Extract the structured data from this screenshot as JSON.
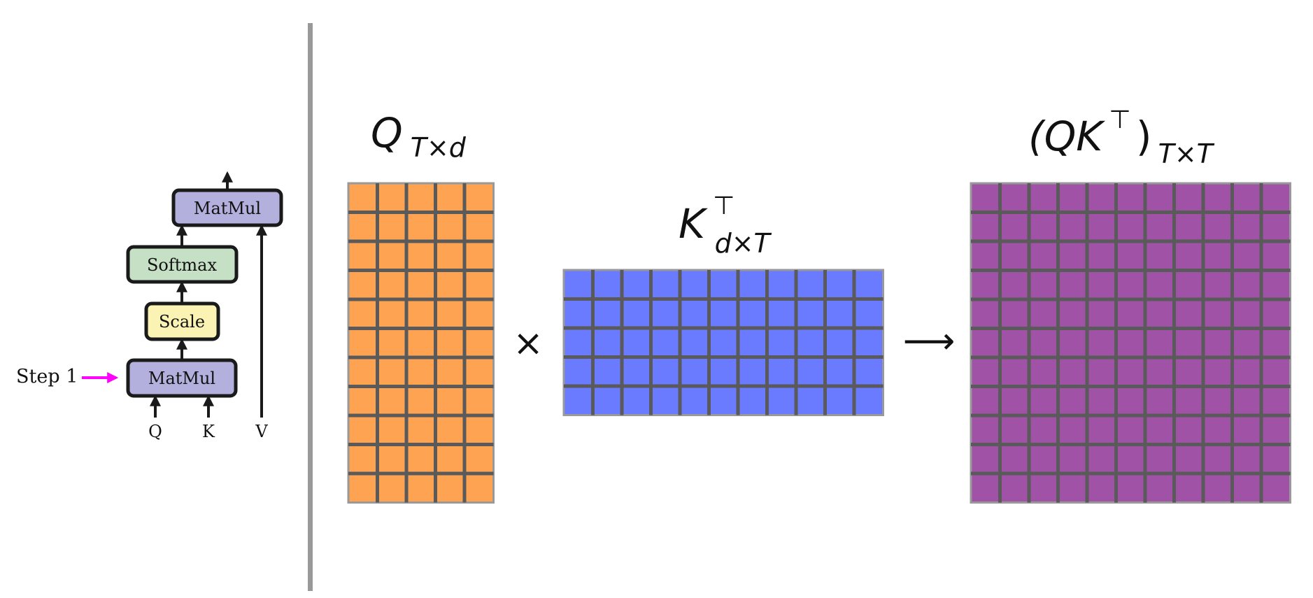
{
  "pipeline": {
    "blocks": {
      "matmul_top": "MatMul",
      "softmax": "Softmax",
      "scale": "Scale",
      "matmul_bottom": "MatMul"
    },
    "inputs": {
      "q": "Q",
      "k": "K",
      "v": "V"
    },
    "step_label": "Step 1",
    "colors": {
      "matmul": "#b3b0dd",
      "softmax": "#c6e0c6",
      "scale": "#fbf3b3",
      "step_arrow": "#ff00ff",
      "border": "#1a1a1a"
    }
  },
  "matrices": {
    "q": {
      "symbol": "Q",
      "subscript": "T×d",
      "rows": 11,
      "cols": 5,
      "color": "#fda352"
    },
    "k": {
      "symbol": "K",
      "superscript": "⊤",
      "subscript": "d×T",
      "rows": 5,
      "cols": 11,
      "color": "#6a7bff"
    },
    "result": {
      "symbol": "(QK",
      "superscript": "⊤",
      "close": ")",
      "subscript": "T×T",
      "rows": 11,
      "cols": 11,
      "color": "#a052a6"
    },
    "operator": "×",
    "result_arrow": "⟶",
    "grid_line_color": "#5a5a5a"
  },
  "divider_color": "#999999"
}
